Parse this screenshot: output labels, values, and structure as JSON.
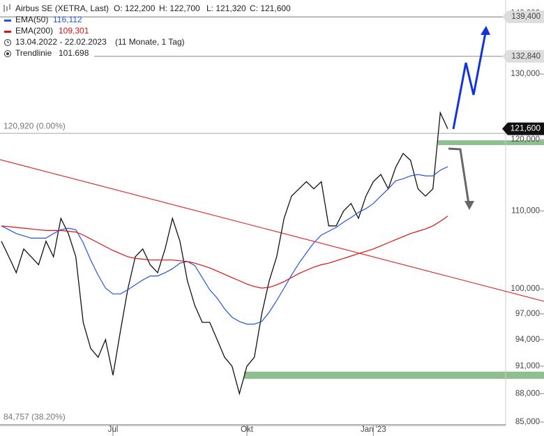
{
  "chart_data": {
    "type": "line",
    "title": "Airbus SE (XETRA, Last)",
    "ohlc": [
      "O: 122,200",
      "H: 122,700",
      "L: 121,320",
      "C: 121,600"
    ],
    "period": "13.04.2022 - 22.02.2023",
    "period_note": "(11 Monate, 1 Tag)",
    "log_scale": true,
    "categories": [
      null,
      null,
      null,
      null,
      null,
      null,
      null,
      null,
      null,
      null,
      null,
      null,
      null,
      null,
      null,
      "Jul",
      null,
      null,
      null,
      null,
      null,
      null,
      null,
      null,
      null,
      null,
      null,
      null,
      null,
      null,
      null,
      null,
      null,
      "Okt",
      null,
      null,
      null,
      null,
      null,
      null,
      null,
      null,
      null,
      null,
      null,
      null,
      null,
      null,
      null,
      null,
      "Jan '23",
      null,
      null,
      null,
      null,
      null,
      null,
      null,
      null,
      null,
      null
    ],
    "series": [
      {
        "color": "#111111",
        "values": [
          106,
          104,
          102,
          105,
          104,
          103,
          106,
          104,
          109,
          107,
          104,
          96,
          93,
          92,
          94,
          90,
          95,
          100,
          104,
          105,
          103,
          102,
          105,
          109,
          106,
          101,
          98,
          96,
          96,
          94,
          92,
          91,
          88,
          91,
          92,
          97,
          101,
          104,
          109,
          112,
          113,
          114,
          113,
          114,
          108,
          108,
          110,
          111,
          109,
          112,
          114,
          115,
          113,
          116,
          118,
          117,
          113,
          112,
          113,
          124,
          121.6
        ]
      },
      {
        "name": "EMA(50)",
        "value_label": "116,112",
        "color": "#2255dd",
        "values": [
          108,
          107.5,
          107,
          106.7,
          106.4,
          106.4,
          106.4,
          107,
          107.5,
          107.7,
          107.5,
          105.8,
          103.6,
          101.7,
          100.1,
          99.4,
          99.4,
          99.9,
          100.5,
          101.1,
          101.6,
          101.6,
          102,
          102.5,
          103.2,
          103.4,
          102.9,
          101.4,
          99.9,
          98.9,
          97.6,
          96.6,
          96.1,
          95.8,
          95.8,
          96.1,
          97.2,
          98.6,
          100.1,
          101.7,
          103.2,
          104.5,
          105.8,
          106.8,
          107.3,
          107.8,
          108.5,
          109.1,
          109.8,
          110.3,
          111,
          112,
          113,
          114.1,
          114.4,
          114.8,
          115,
          114.8,
          114.8,
          115.6,
          116.1
        ]
      },
      {
        "name": "EMA(200)",
        "value_label": "109,301",
        "color": "#dd1111",
        "values": [
          108,
          107.9,
          107.8,
          107.7,
          107.6,
          107.5,
          107.4,
          107.4,
          107.4,
          107.3,
          107.2,
          106.8,
          106.3,
          105.8,
          105.3,
          104.8,
          104.4,
          104,
          103.8,
          103.7,
          103.6,
          103.6,
          103.6,
          103.6,
          103.5,
          103.4,
          103.2,
          102.9,
          102.6,
          102.2,
          101.8,
          101.4,
          101,
          100.6,
          100.3,
          100.1,
          100.2,
          100.5,
          100.9,
          101.4,
          101.9,
          102.3,
          102.7,
          103,
          103.2,
          103.5,
          103.8,
          104.1,
          104.4,
          104.7,
          105,
          105.4,
          105.8,
          106.2,
          106.6,
          107,
          107.3,
          107.6,
          108,
          108.6,
          109.3
        ]
      }
    ],
    "trendline": {
      "name": "Trendlinie",
      "value_label": "101.698",
      "color": "#e03030",
      "start": 117.1,
      "end": 98.5
    },
    "levels": [
      {
        "value": 139.4,
        "label": "139,400"
      },
      {
        "value": 132.84,
        "label": "132,840"
      }
    ],
    "last_price": {
      "value": 121.6,
      "label": "121,600"
    },
    "fib_lines": [
      {
        "value": 120.92,
        "label": "120,920 (0.00%)"
      },
      {
        "value": 84.757,
        "label": "84,757 (38.20%)"
      }
    ],
    "zones": [
      {
        "from": 119.2,
        "to": 119.9,
        "color": "#8fbf8f"
      },
      {
        "from": 89.6,
        "to": 90.4,
        "color": "#8fbf8f"
      }
    ],
    "ylim": [
      84.64,
      142.3
    ],
    "yticks": [
      {
        "value": 85,
        "label": "85,000"
      },
      {
        "value": 88,
        "label": "88,000"
      },
      {
        "value": 91,
        "label": "91,000"
      },
      {
        "value": 94,
        "label": "94,000"
      },
      {
        "value": 97,
        "label": "97,000"
      },
      {
        "value": 100,
        "label": "100,000"
      },
      {
        "value": 110,
        "label": "110,000"
      },
      {
        "value": 120,
        "label": "120,000"
      },
      {
        "value": 130,
        "label": "130,000"
      },
      {
        "value": 140,
        "label": "140,000"
      }
    ]
  }
}
